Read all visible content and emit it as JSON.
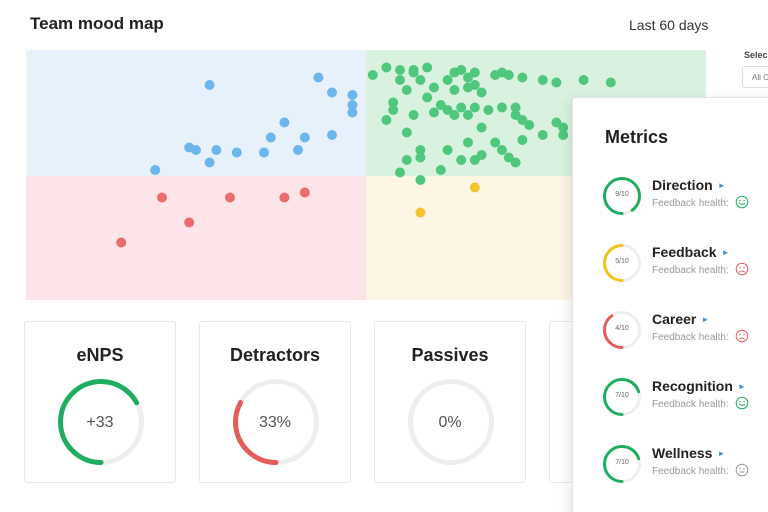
{
  "header": {
    "title": "Team mood map",
    "range": "Last 60 days"
  },
  "side_select": {
    "label": "Selec",
    "value": "All C"
  },
  "colors": {
    "quad_blue": "#e6f1fc",
    "quad_green": "#d9f2df",
    "quad_red": "#fde4e8",
    "quad_yellow": "#fdf6e4",
    "dot_blue": "#6bb6ec",
    "dot_green": "#4fc77d",
    "dot_red": "#ec6c6c",
    "dot_yellow": "#f2c531",
    "ring_green": "#1fae5f",
    "ring_yellow": "#f0c419",
    "ring_red": "#e85b5b",
    "ring_track": "#eeeeee"
  },
  "mood_points": {
    "blue": [
      [
        0.27,
        0.14
      ],
      [
        0.43,
        0.11
      ],
      [
        0.45,
        0.17
      ],
      [
        0.48,
        0.18
      ],
      [
        0.48,
        0.22
      ],
      [
        0.48,
        0.25
      ],
      [
        0.38,
        0.29
      ],
      [
        0.36,
        0.35
      ],
      [
        0.35,
        0.41
      ],
      [
        0.31,
        0.41
      ],
      [
        0.28,
        0.4
      ],
      [
        0.41,
        0.35
      ],
      [
        0.4,
        0.4
      ],
      [
        0.45,
        0.34
      ],
      [
        0.24,
        0.39
      ],
      [
        0.25,
        0.4
      ],
      [
        0.27,
        0.45
      ],
      [
        0.19,
        0.48
      ]
    ],
    "green": [
      [
        0.51,
        0.1
      ],
      [
        0.53,
        0.07
      ],
      [
        0.55,
        0.08
      ],
      [
        0.55,
        0.12
      ],
      [
        0.57,
        0.09
      ],
      [
        0.57,
        0.08
      ],
      [
        0.59,
        0.07
      ],
      [
        0.58,
        0.12
      ],
      [
        0.6,
        0.15
      ],
      [
        0.56,
        0.16
      ],
      [
        0.59,
        0.19
      ],
      [
        0.62,
        0.12
      ],
      [
        0.63,
        0.09
      ],
      [
        0.64,
        0.08
      ],
      [
        0.63,
        0.16
      ],
      [
        0.65,
        0.11
      ],
      [
        0.65,
        0.15
      ],
      [
        0.66,
        0.14
      ],
      [
        0.67,
        0.17
      ],
      [
        0.66,
        0.09
      ],
      [
        0.69,
        0.1
      ],
      [
        0.7,
        0.09
      ],
      [
        0.71,
        0.1
      ],
      [
        0.73,
        0.11
      ],
      [
        0.76,
        0.12
      ],
      [
        0.78,
        0.13
      ],
      [
        0.82,
        0.12
      ],
      [
        0.86,
        0.13
      ],
      [
        0.53,
        0.28
      ],
      [
        0.54,
        0.21
      ],
      [
        0.54,
        0.24
      ],
      [
        0.56,
        0.33
      ],
      [
        0.57,
        0.26
      ],
      [
        0.6,
        0.25
      ],
      [
        0.61,
        0.22
      ],
      [
        0.62,
        0.24
      ],
      [
        0.63,
        0.26
      ],
      [
        0.64,
        0.23
      ],
      [
        0.65,
        0.26
      ],
      [
        0.66,
        0.23
      ],
      [
        0.67,
        0.31
      ],
      [
        0.68,
        0.24
      ],
      [
        0.7,
        0.23
      ],
      [
        0.72,
        0.23
      ],
      [
        0.72,
        0.26
      ],
      [
        0.73,
        0.28
      ],
      [
        0.74,
        0.3
      ],
      [
        0.78,
        0.29
      ],
      [
        0.79,
        0.31
      ],
      [
        0.79,
        0.34
      ],
      [
        0.76,
        0.34
      ],
      [
        0.73,
        0.36
      ],
      [
        0.69,
        0.37
      ],
      [
        0.65,
        0.37
      ],
      [
        0.62,
        0.4
      ],
      [
        0.64,
        0.44
      ],
      [
        0.66,
        0.44
      ],
      [
        0.67,
        0.42
      ],
      [
        0.7,
        0.4
      ],
      [
        0.71,
        0.43
      ],
      [
        0.72,
        0.45
      ],
      [
        0.56,
        0.44
      ],
      [
        0.58,
        0.4
      ],
      [
        0.58,
        0.43
      ],
      [
        0.55,
        0.49
      ],
      [
        0.58,
        0.52
      ],
      [
        0.61,
        0.48
      ]
    ],
    "red": [
      [
        0.41,
        0.57
      ],
      [
        0.38,
        0.59
      ],
      [
        0.3,
        0.59
      ],
      [
        0.2,
        0.59
      ],
      [
        0.24,
        0.69
      ],
      [
        0.14,
        0.77
      ]
    ],
    "yellow": [
      [
        0.66,
        0.55
      ],
      [
        0.58,
        0.65
      ]
    ]
  },
  "cards": [
    {
      "title": "eNPS",
      "value": "+33",
      "fraction": 0.67,
      "color": "#1fae5f"
    },
    {
      "title": "Detractors",
      "value": "33%",
      "fraction": 0.33,
      "color": "#e85b5b"
    },
    {
      "title": "Passives",
      "value": "0%",
      "fraction": 0,
      "color": "#1fae5f"
    }
  ],
  "metrics": {
    "title": "Metrics",
    "items": [
      {
        "name": "Direction",
        "score": "9/10",
        "fraction": 0.9,
        "color": "#1fae5f",
        "health_label": "Feedback health:",
        "health": "happy"
      },
      {
        "name": "Feedback",
        "score": "5/10",
        "fraction": 0.5,
        "color": "#f0c419",
        "health_label": "Feedback health:",
        "health": "sad"
      },
      {
        "name": "Career",
        "score": "4/10",
        "fraction": 0.4,
        "color": "#e85b5b",
        "health_label": "Feedback health:",
        "health": "sad"
      },
      {
        "name": "Recognition",
        "score": "7/10",
        "fraction": 0.7,
        "color": "#1fae5f",
        "health_label": "Feedback health:",
        "health": "happy"
      },
      {
        "name": "Wellness",
        "score": "7/10",
        "fraction": 0.7,
        "color": "#1fae5f",
        "health_label": "Feedback health:",
        "health": "neutral"
      }
    ]
  }
}
